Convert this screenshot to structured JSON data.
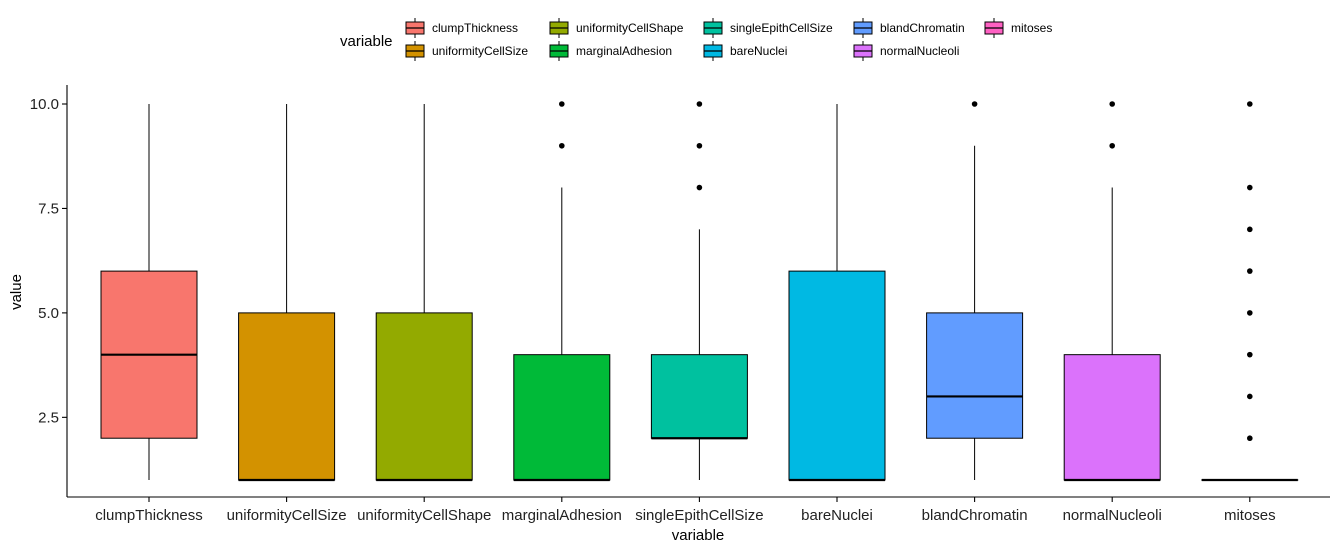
{
  "chart_data": {
    "type": "boxplot",
    "xlabel": "variable",
    "ylabel": "value",
    "ylim": [
      1,
      10
    ],
    "yticks": [
      2.5,
      5.0,
      7.5,
      10.0
    ],
    "ytick_labels": [
      "2.5",
      "5.0",
      "7.5",
      "10.0"
    ],
    "grid": false,
    "legend": {
      "title": "variable",
      "position": "top"
    },
    "categories": [
      "clumpThickness",
      "uniformityCellSize",
      "uniformityCellShape",
      "marginalAdhesion",
      "singleEpithCellSize",
      "bareNuclei",
      "blandChromatin",
      "normalNucleoli",
      "mitoses"
    ],
    "colors": [
      "#F8766D",
      "#D39200",
      "#93AA00",
      "#00BA38",
      "#00C19F",
      "#00B9E3",
      "#619CFF",
      "#DB72FB",
      "#FF61C3"
    ],
    "boxes": [
      {
        "min": 1,
        "q1": 2,
        "median": 4,
        "q3": 6,
        "max": 10,
        "outliers": []
      },
      {
        "min": 1,
        "q1": 1,
        "median": 1,
        "q3": 5,
        "max": 10,
        "outliers": []
      },
      {
        "min": 1,
        "q1": 1,
        "median": 1,
        "q3": 5,
        "max": 10,
        "outliers": []
      },
      {
        "min": 1,
        "q1": 1,
        "median": 1,
        "q3": 4,
        "max": 8,
        "outliers": [
          9,
          10
        ]
      },
      {
        "min": 1,
        "q1": 2,
        "median": 2,
        "q3": 4,
        "max": 7,
        "outliers": [
          8,
          9,
          10
        ]
      },
      {
        "min": 1,
        "q1": 1,
        "median": 1,
        "q3": 6,
        "max": 10,
        "outliers": []
      },
      {
        "min": 1,
        "q1": 2,
        "median": 3,
        "q3": 5,
        "max": 9,
        "outliers": [
          10
        ]
      },
      {
        "min": 1,
        "q1": 1,
        "median": 1,
        "q3": 4,
        "max": 8,
        "outliers": [
          9,
          10
        ]
      },
      {
        "min": 1,
        "q1": 1,
        "median": 1,
        "q3": 1,
        "max": 1,
        "outliers": [
          2,
          3,
          4,
          5,
          6,
          7,
          8,
          10
        ]
      }
    ]
  }
}
